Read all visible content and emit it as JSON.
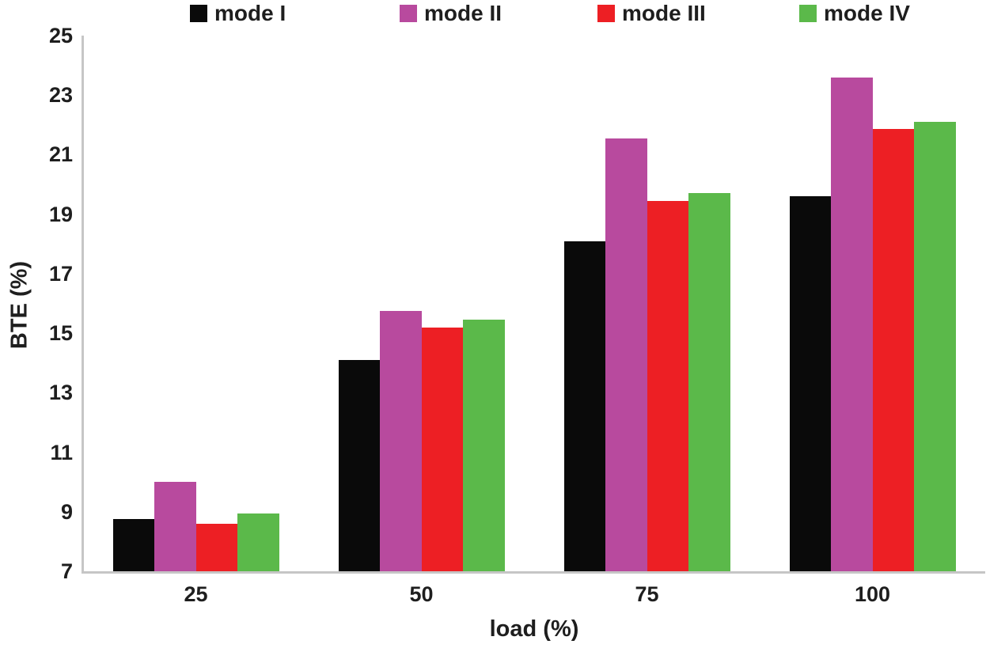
{
  "chart_data": {
    "type": "bar",
    "title": "",
    "xlabel": "load (%)",
    "ylabel": "BTE (%)",
    "categories": [
      "25",
      "50",
      "75",
      "100"
    ],
    "series": [
      {
        "name": "mode I",
        "color": "#0a0a0a",
        "values": [
          8.75,
          14.1,
          18.1,
          19.6
        ]
      },
      {
        "name": "mode II",
        "color": "#b84a9e",
        "values": [
          10.0,
          15.75,
          21.55,
          23.6
        ]
      },
      {
        "name": "mode III",
        "color": "#ed1f24",
        "values": [
          8.6,
          15.2,
          19.45,
          21.85
        ]
      },
      {
        "name": "mode IV",
        "color": "#5bb94a",
        "values": [
          8.95,
          15.45,
          19.7,
          22.1
        ]
      }
    ],
    "ylim": [
      7,
      25
    ],
    "yticks": [
      7,
      9,
      11,
      13,
      15,
      17,
      19,
      21,
      23,
      25
    ],
    "grid": false,
    "legend_position": "top",
    "axis_color": "#c6c6c6",
    "background": "#ffffff"
  }
}
